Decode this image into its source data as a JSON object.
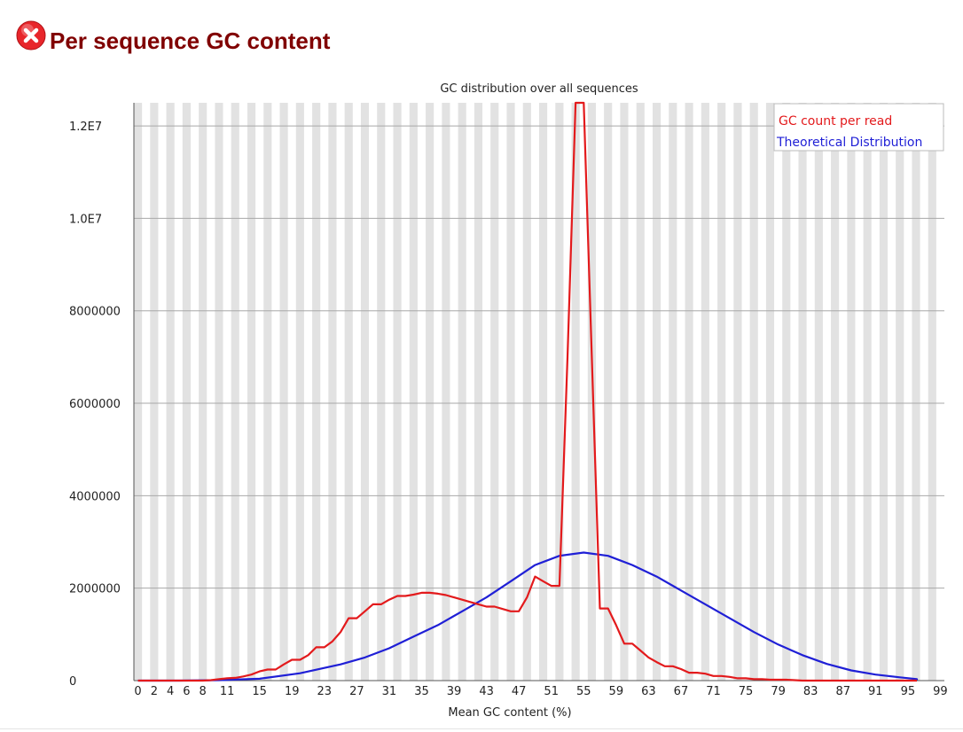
{
  "page": {
    "title": "Per sequence GC content",
    "status": "fail",
    "status_icon": "error-x-icon",
    "status_color": "#e8262b",
    "title_color": "#800000"
  },
  "chart_data": {
    "type": "line",
    "title": "GC distribution over all sequences",
    "xlabel": "Mean GC content (%)",
    "ylabel": "",
    "xlim": [
      0,
      100
    ],
    "ylim": [
      0,
      12500000
    ],
    "grid": true,
    "y_scale": "linear",
    "legend_position": "top-right",
    "x_tick_labels": [
      "0",
      "2",
      "4",
      "6",
      "8",
      "11",
      "15",
      "19",
      "23",
      "27",
      "31",
      "35",
      "39",
      "43",
      "47",
      "51",
      "55",
      "59",
      "63",
      "67",
      "71",
      "75",
      "79",
      "83",
      "87",
      "91",
      "95",
      "99"
    ],
    "y_ticks": [
      0,
      2000000,
      4000000,
      6000000,
      8000000,
      10000000,
      12000000
    ],
    "y_tick_labels": [
      "0",
      "2000000",
      "4000000",
      "6000000",
      "8000000",
      "1.0E7",
      "1.2E7"
    ],
    "series": [
      {
        "name": "GC count per read",
        "color": "#e31a1c",
        "x": [
          0,
          1,
          2,
          3,
          4,
          5,
          6,
          7,
          8,
          9,
          10,
          11,
          12,
          13,
          14,
          15,
          16,
          17,
          18,
          19,
          20,
          21,
          22,
          23,
          24,
          25,
          26,
          27,
          28,
          29,
          30,
          31,
          32,
          33,
          34,
          35,
          36,
          37,
          38,
          39,
          40,
          41,
          42,
          43,
          44,
          45,
          46,
          47,
          48,
          49,
          50,
          51,
          52,
          53,
          54,
          55,
          56,
          57,
          58,
          59,
          60,
          61,
          62,
          63,
          64,
          65,
          66,
          67,
          68,
          69,
          70,
          71,
          72,
          73,
          74,
          75,
          76,
          77,
          78,
          79,
          80,
          81,
          82,
          83,
          84,
          85,
          86,
          87,
          88,
          89,
          90,
          91,
          92,
          93,
          94,
          95,
          96,
          97,
          98,
          99,
          100
        ],
        "y": [
          0,
          0,
          0,
          0,
          0,
          0,
          0,
          0,
          0,
          10000,
          30000,
          50000,
          60000,
          90000,
          130000,
          200000,
          240000,
          240000,
          350000,
          450000,
          450000,
          550000,
          720000,
          720000,
          850000,
          1050000,
          1350000,
          1350000,
          1500000,
          1650000,
          1650000,
          1750000,
          1830000,
          1830000,
          1860000,
          1900000,
          1900000,
          1880000,
          1850000,
          1800000,
          1750000,
          1700000,
          1650000,
          1600000,
          1600000,
          1550000,
          1500000,
          1500000,
          1800000,
          2250000,
          2150000,
          2050000,
          2050000,
          7000000,
          12500000,
          12500000,
          7000000,
          1560000,
          1560000,
          1200000,
          800000,
          800000,
          650000,
          500000,
          400000,
          310000,
          310000,
          250000,
          170000,
          170000,
          150000,
          100000,
          100000,
          80000,
          50000,
          50000,
          30000,
          30000,
          20000,
          20000,
          20000,
          10000,
          0,
          0,
          0,
          0,
          0,
          0,
          0,
          0,
          0,
          0,
          0,
          0,
          0,
          0,
          0,
          0,
          0,
          0,
          0
        ]
      },
      {
        "name": "Theoretical Distribution",
        "color": "#1f1fd6",
        "x": [
          0,
          5,
          10,
          15,
          20,
          25,
          28,
          31,
          34,
          37,
          40,
          43,
          46,
          49,
          52,
          55,
          58,
          61,
          64,
          67,
          70,
          73,
          76,
          79,
          82,
          85,
          88,
          91,
          94,
          97,
          100
        ],
        "y": [
          0,
          0,
          10000,
          40000,
          160000,
          350000,
          500000,
          700000,
          950000,
          1200000,
          1500000,
          1800000,
          2150000,
          2500000,
          2700000,
          2770000,
          2700000,
          2500000,
          2250000,
          1950000,
          1650000,
          1350000,
          1050000,
          780000,
          550000,
          360000,
          220000,
          130000,
          70000,
          30000,
          10000
        ]
      }
    ]
  }
}
